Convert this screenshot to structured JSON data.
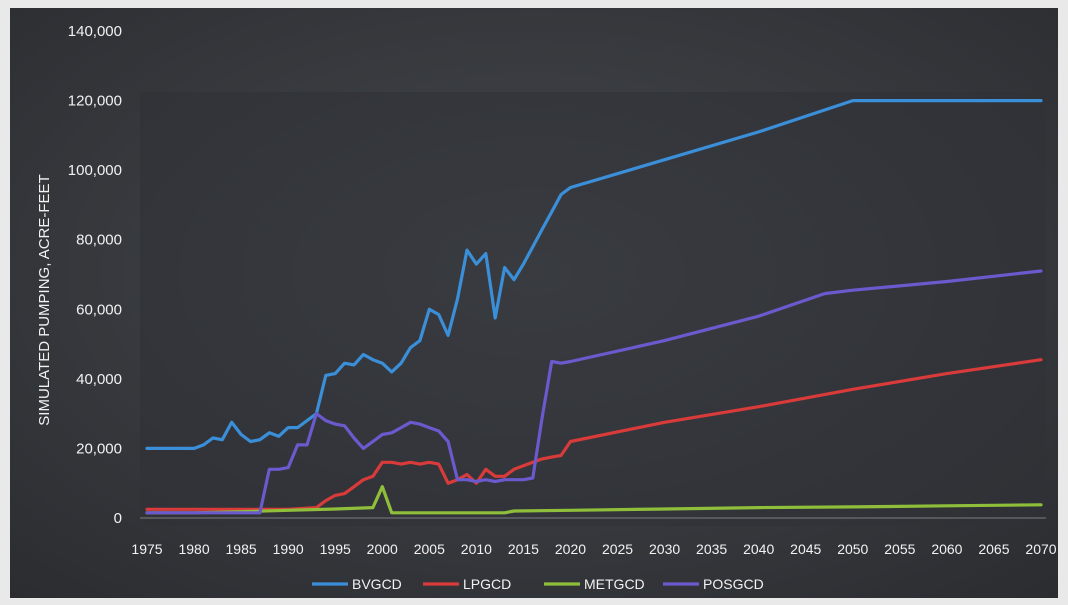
{
  "chart_data": {
    "type": "line",
    "title": "",
    "xlabel": "",
    "ylabel": "SIMULATED PUMPING, ACRE-FEET",
    "xlim": [
      1975,
      2070
    ],
    "ylim": [
      0,
      140000
    ],
    "x_ticks": [
      "1975",
      "1980",
      "1985",
      "1990",
      "1995",
      "2000",
      "2005",
      "2010",
      "2015",
      "2020",
      "2025",
      "2030",
      "2035",
      "2040",
      "2045",
      "2050",
      "2055",
      "2060",
      "2065",
      "2070"
    ],
    "y_ticks": [
      "0",
      "20,000",
      "40,000",
      "60,000",
      "80,000",
      "100,000",
      "120,000",
      "140,000"
    ],
    "grid": false,
    "legend_position": "bottom",
    "colors": {
      "background": "#3a3d42",
      "BVGCD": "#3b8fd9",
      "LPGCD": "#d93a3a",
      "METGCD": "#8fbf3a",
      "POSGCD": "#6a5acd"
    },
    "series": [
      {
        "name": "BVGCD",
        "color": "#3b8fd9",
        "points": [
          [
            1975,
            20000
          ],
          [
            1976,
            20000
          ],
          [
            1977,
            20000
          ],
          [
            1978,
            20000
          ],
          [
            1979,
            20000
          ],
          [
            1980,
            20000
          ],
          [
            1981,
            21000
          ],
          [
            1982,
            23000
          ],
          [
            1983,
            22500
          ],
          [
            1984,
            27500
          ],
          [
            1985,
            24000
          ],
          [
            1986,
            22000
          ],
          [
            1987,
            22500
          ],
          [
            1988,
            24500
          ],
          [
            1989,
            23500
          ],
          [
            1990,
            26000
          ],
          [
            1991,
            26000
          ],
          [
            1992,
            28000
          ],
          [
            1993,
            30000
          ],
          [
            1994,
            41000
          ],
          [
            1995,
            41500
          ],
          [
            1996,
            44500
          ],
          [
            1997,
            44000
          ],
          [
            1998,
            47000
          ],
          [
            1999,
            45500
          ],
          [
            2000,
            44500
          ],
          [
            2001,
            42000
          ],
          [
            2002,
            44500
          ],
          [
            2003,
            49000
          ],
          [
            2004,
            51000
          ],
          [
            2005,
            60000
          ],
          [
            2006,
            58500
          ],
          [
            2007,
            52500
          ],
          [
            2008,
            63000
          ],
          [
            2009,
            77000
          ],
          [
            2010,
            73000
          ],
          [
            2011,
            76000
          ],
          [
            2012,
            57500
          ],
          [
            2013,
            72000
          ],
          [
            2014,
            68500
          ],
          [
            2015,
            73000
          ],
          [
            2016,
            78000
          ],
          [
            2017,
            83000
          ],
          [
            2018,
            88000
          ],
          [
            2019,
            93000
          ],
          [
            2020,
            95000
          ],
          [
            2030,
            103000
          ],
          [
            2040,
            111000
          ],
          [
            2050,
            120000
          ],
          [
            2060,
            120000
          ],
          [
            2070,
            120000
          ]
        ]
      },
      {
        "name": "LPGCD",
        "color": "#d93a3a",
        "points": [
          [
            1975,
            2500
          ],
          [
            1980,
            2500
          ],
          [
            1985,
            2500
          ],
          [
            1990,
            2500
          ],
          [
            1993,
            3000
          ],
          [
            1994,
            5000
          ],
          [
            1995,
            6500
          ],
          [
            1996,
            7000
          ],
          [
            1997,
            9000
          ],
          [
            1998,
            11000
          ],
          [
            1999,
            12000
          ],
          [
            2000,
            16000
          ],
          [
            2001,
            16000
          ],
          [
            2002,
            15500
          ],
          [
            2003,
            16000
          ],
          [
            2004,
            15500
          ],
          [
            2005,
            16000
          ],
          [
            2006,
            15500
          ],
          [
            2007,
            10000
          ],
          [
            2008,
            11000
          ],
          [
            2009,
            12500
          ],
          [
            2010,
            10000
          ],
          [
            2011,
            14000
          ],
          [
            2012,
            12000
          ],
          [
            2013,
            12000
          ],
          [
            2014,
            14000
          ],
          [
            2015,
            15000
          ],
          [
            2016,
            16000
          ],
          [
            2017,
            17000
          ],
          [
            2018,
            17500
          ],
          [
            2019,
            18000
          ],
          [
            2020,
            22000
          ],
          [
            2030,
            27500
          ],
          [
            2040,
            32000
          ],
          [
            2050,
            37000
          ],
          [
            2060,
            41500
          ],
          [
            2070,
            45500
          ]
        ]
      },
      {
        "name": "METGCD",
        "color": "#8fbf3a",
        "points": [
          [
            1975,
            1500
          ],
          [
            1980,
            1500
          ],
          [
            1985,
            1800
          ],
          [
            1990,
            2200
          ],
          [
            1995,
            2600
          ],
          [
            1999,
            3000
          ],
          [
            2000,
            9000
          ],
          [
            2001,
            1500
          ],
          [
            2005,
            1500
          ],
          [
            2010,
            1500
          ],
          [
            2013,
            1500
          ],
          [
            2014,
            2000
          ],
          [
            2020,
            2200
          ],
          [
            2030,
            2600
          ],
          [
            2040,
            3000
          ],
          [
            2050,
            3200
          ],
          [
            2060,
            3500
          ],
          [
            2070,
            3800
          ]
        ]
      },
      {
        "name": "POSGCD",
        "color": "#6a5acd",
        "points": [
          [
            1975,
            1500
          ],
          [
            1980,
            1500
          ],
          [
            1985,
            1500
          ],
          [
            1987,
            1500
          ],
          [
            1988,
            14000
          ],
          [
            1989,
            14000
          ],
          [
            1990,
            14500
          ],
          [
            1991,
            21000
          ],
          [
            1992,
            21000
          ],
          [
            1993,
            30000
          ],
          [
            1994,
            28000
          ],
          [
            1995,
            27000
          ],
          [
            1996,
            26500
          ],
          [
            1997,
            23000
          ],
          [
            1998,
            20000
          ],
          [
            1999,
            22000
          ],
          [
            2000,
            24000
          ],
          [
            2001,
            24500
          ],
          [
            2002,
            26000
          ],
          [
            2003,
            27500
          ],
          [
            2004,
            27000
          ],
          [
            2005,
            26000
          ],
          [
            2006,
            25000
          ],
          [
            2007,
            22000
          ],
          [
            2008,
            11000
          ],
          [
            2009,
            11000
          ],
          [
            2010,
            10500
          ],
          [
            2011,
            11000
          ],
          [
            2012,
            10500
          ],
          [
            2013,
            11000
          ],
          [
            2014,
            11000
          ],
          [
            2015,
            11000
          ],
          [
            2016,
            11500
          ],
          [
            2017,
            29000
          ],
          [
            2018,
            45000
          ],
          [
            2019,
            44500
          ],
          [
            2020,
            45000
          ],
          [
            2030,
            51000
          ],
          [
            2040,
            58000
          ],
          [
            2047,
            64500
          ],
          [
            2050,
            65500
          ],
          [
            2060,
            68000
          ],
          [
            2070,
            71000
          ]
        ]
      }
    ]
  }
}
